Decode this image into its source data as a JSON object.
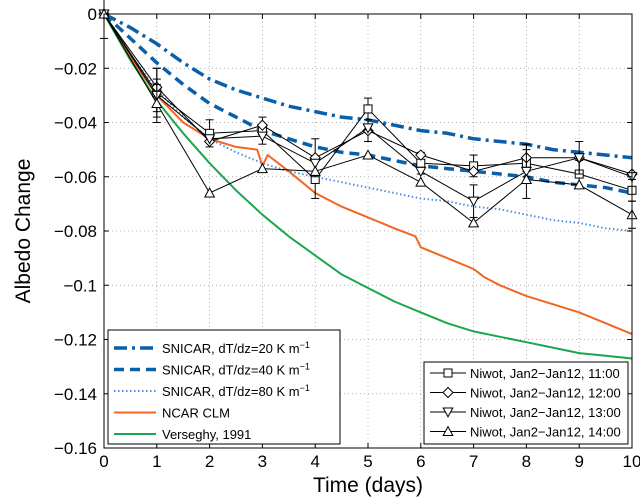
{
  "chart_data": {
    "type": "line",
    "title": "",
    "xlabel": "Time (days)",
    "ylabel": "Albedo Change",
    "xlim": [
      0,
      10
    ],
    "ylim": [
      -0.16,
      0
    ],
    "xticks": [
      0,
      1,
      2,
      3,
      4,
      5,
      6,
      7,
      8,
      9,
      10
    ],
    "yticks": [
      0,
      -0.02,
      -0.04,
      -0.06,
      -0.08,
      -0.1,
      -0.12,
      -0.14,
      -0.16
    ],
    "xtick_labels": [
      "0",
      "1",
      "2",
      "3",
      "4",
      "5",
      "6",
      "7",
      "8",
      "9",
      "10"
    ],
    "ytick_labels": [
      "0",
      "−0.02",
      "−0.04",
      "−0.06",
      "−0.08",
      "−0.1",
      "−0.12",
      "−0.14",
      "−0.16"
    ],
    "grid": true,
    "model_series": [
      {
        "name": "SNICAR, dT/dz=20 K m",
        "superscript": "−1",
        "color": "#0a5fa8",
        "style": "dashdot",
        "x": [
          0,
          0.5,
          1,
          1.5,
          2,
          2.5,
          3,
          3.5,
          4,
          4.5,
          5,
          5.5,
          6,
          6.5,
          7,
          7.5,
          8,
          8.5,
          9,
          9.5,
          10
        ],
        "y": [
          0,
          -0.005,
          -0.011,
          -0.018,
          -0.024,
          -0.028,
          -0.031,
          -0.034,
          -0.036,
          -0.038,
          -0.039,
          -0.041,
          -0.043,
          -0.044,
          -0.046,
          -0.047,
          -0.048,
          -0.05,
          -0.051,
          -0.052,
          -0.053
        ]
      },
      {
        "name": "SNICAR, dT/dz=40 K m",
        "superscript": "−1",
        "color": "#0a5fa8",
        "style": "dashed",
        "x": [
          0,
          0.5,
          1,
          1.5,
          2,
          2.5,
          3,
          3.5,
          4,
          4.5,
          5,
          5.5,
          6,
          6.5,
          7,
          7.5,
          8,
          8.5,
          9,
          9.5,
          10
        ],
        "y": [
          0,
          -0.009,
          -0.018,
          -0.026,
          -0.033,
          -0.038,
          -0.043,
          -0.046,
          -0.049,
          -0.051,
          -0.052,
          -0.054,
          -0.056,
          -0.057,
          -0.058,
          -0.059,
          -0.06,
          -0.062,
          -0.063,
          -0.064,
          -0.066
        ]
      },
      {
        "name": "SNICAR, dT/dz=80 K m",
        "superscript": "−1",
        "color": "#4a90e2",
        "style": "dotted",
        "x": [
          0,
          0.5,
          1,
          1.5,
          2,
          2.5,
          3,
          3.5,
          4,
          4.5,
          5,
          5.5,
          6,
          6.5,
          7,
          7.5,
          8,
          8.5,
          9,
          9.5,
          10
        ],
        "y": [
          0,
          -0.015,
          -0.028,
          -0.038,
          -0.046,
          -0.051,
          -0.055,
          -0.058,
          -0.06,
          -0.062,
          -0.064,
          -0.066,
          -0.068,
          -0.069,
          -0.071,
          -0.072,
          -0.074,
          -0.076,
          -0.077,
          -0.079,
          -0.08
        ]
      },
      {
        "name": "NCAR CLM",
        "color": "#f26522",
        "style": "solid",
        "x": [
          0,
          0.5,
          1,
          1.5,
          2,
          2.5,
          2.9,
          3.0,
          3.1,
          3.5,
          4,
          4.5,
          5,
          5.5,
          5.9,
          6,
          6.5,
          7,
          7.2,
          7.5,
          8,
          8.5,
          9,
          9.5,
          10
        ],
        "y": [
          0,
          -0.016,
          -0.03,
          -0.04,
          -0.046,
          -0.049,
          -0.05,
          -0.056,
          -0.052,
          -0.058,
          -0.066,
          -0.071,
          -0.075,
          -0.079,
          -0.082,
          -0.086,
          -0.09,
          -0.094,
          -0.097,
          -0.1,
          -0.104,
          -0.107,
          -0.11,
          -0.114,
          -0.118
        ]
      },
      {
        "name": "Verseghy, 1991",
        "color": "#1aa64b",
        "style": "solid",
        "x": [
          0,
          0.5,
          1,
          1.5,
          2,
          2.5,
          3,
          3.5,
          4,
          4.5,
          5,
          5.5,
          6,
          6.5,
          7,
          7.5,
          8,
          8.5,
          9,
          9.5,
          10
        ],
        "y": [
          0,
          -0.017,
          -0.032,
          -0.044,
          -0.055,
          -0.065,
          -0.074,
          -0.082,
          -0.089,
          -0.096,
          -0.101,
          -0.106,
          -0.11,
          -0.114,
          -0.117,
          -0.119,
          -0.121,
          -0.123,
          -0.125,
          -0.126,
          -0.127
        ]
      }
    ],
    "observed_series": [
      {
        "name": "Niwot, Jan2−Jan12, 11:00",
        "marker": "square",
        "x": [
          0,
          1,
          2,
          3,
          4,
          5,
          6,
          7,
          8,
          9,
          10
        ],
        "y": [
          0,
          -0.029,
          -0.044,
          -0.043,
          -0.061,
          -0.035,
          -0.055,
          -0.056,
          -0.055,
          -0.059,
          -0.065
        ],
        "err": [
          0.009,
          0.009,
          0.005,
          0.005,
          0.007,
          0.004,
          0.004,
          0.004,
          0.005,
          0.005,
          0.004
        ]
      },
      {
        "name": "Niwot, Jan2−Jan12, 12:00",
        "marker": "diamond",
        "x": [
          0,
          1,
          2,
          3,
          4,
          5,
          6,
          7,
          8,
          9,
          10
        ],
        "y": [
          0,
          -0.027,
          -0.047,
          -0.041,
          -0.053,
          -0.043,
          -0.052,
          -0.058,
          -0.053,
          -0.053,
          -0.059
        ],
        "err": [
          0,
          0.007,
          0,
          0,
          0.007,
          0.004,
          0,
          0,
          0.005,
          0.006,
          0
        ]
      },
      {
        "name": "Niwot, Jan2−Jan12, 13:00",
        "marker": "triangle-down",
        "x": [
          0,
          1,
          2,
          3,
          4,
          5,
          6,
          7,
          8,
          9,
          10
        ],
        "y": [
          0,
          -0.03,
          -0.046,
          -0.045,
          -0.055,
          -0.042,
          -0.058,
          -0.069,
          -0.058,
          -0.053,
          -0.06
        ],
        "err": [
          0,
          0.006,
          0,
          0,
          0,
          0,
          0,
          0.006,
          0.01,
          0,
          0
        ]
      },
      {
        "name": "Niwot, Jan2−Jan12, 14:00",
        "marker": "triangle-up",
        "x": [
          0,
          1,
          2,
          3,
          4,
          5,
          6,
          7,
          8,
          9,
          10
        ],
        "y": [
          0,
          -0.033,
          -0.066,
          -0.057,
          -0.058,
          -0.052,
          -0.062,
          -0.077,
          -0.061,
          -0.063,
          -0.074
        ],
        "err": [
          0,
          0.007,
          0,
          0,
          0,
          0,
          0,
          0,
          0,
          0,
          0.005
        ]
      }
    ],
    "legend_left_position": "bottom-left",
    "legend_right_position": "bottom-right"
  }
}
